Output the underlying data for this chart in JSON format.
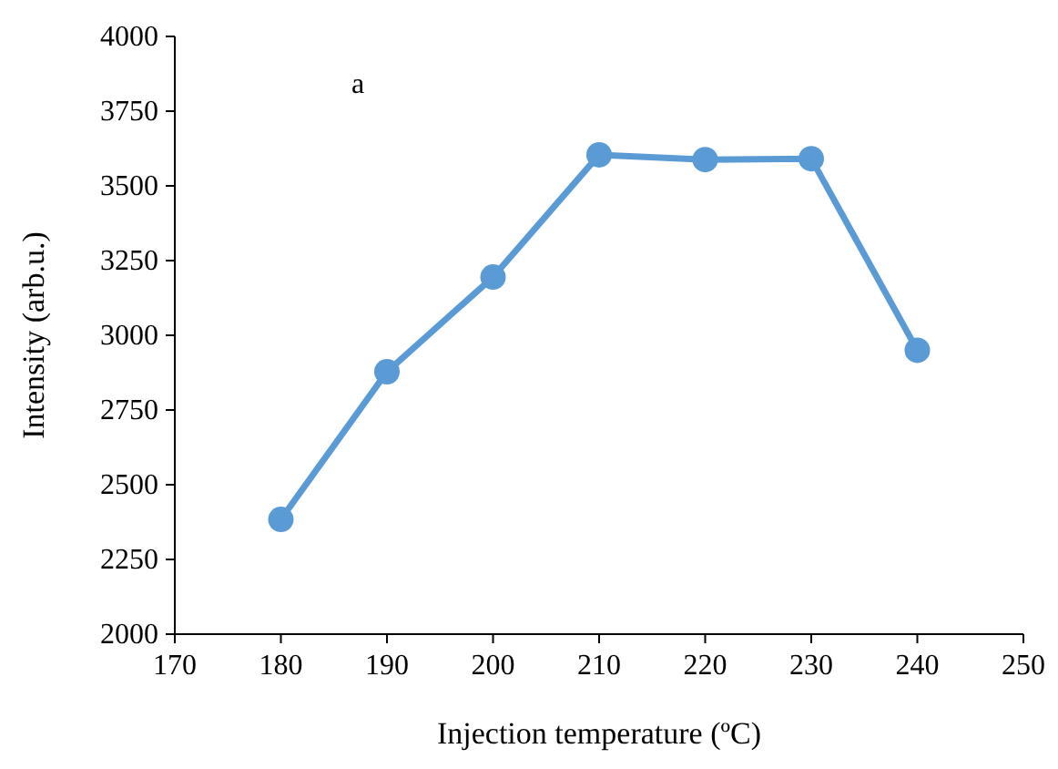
{
  "chart_data": {
    "type": "line",
    "xlabel": "Injection temperature (ºC)",
    "ylabel": "Intensity (arb.u.)",
    "annotations": [
      "a"
    ],
    "x": [
      180,
      190,
      200,
      210,
      220,
      230,
      240
    ],
    "series": [
      {
        "color": "#5b9bd5",
        "values": [
          2384,
          2878,
          3195,
          3604,
          3588,
          3591,
          2950
        ]
      }
    ],
    "xlim": [
      170,
      250
    ],
    "xticks": [
      170,
      180,
      190,
      200,
      210,
      220,
      230,
      240,
      250
    ],
    "ylim": [
      2000,
      4000
    ],
    "yticks": [
      2000,
      2250,
      2500,
      2750,
      3000,
      3250,
      3500,
      3750,
      4000
    ],
    "grid": false,
    "marker": "circle",
    "line_style": "solid"
  }
}
